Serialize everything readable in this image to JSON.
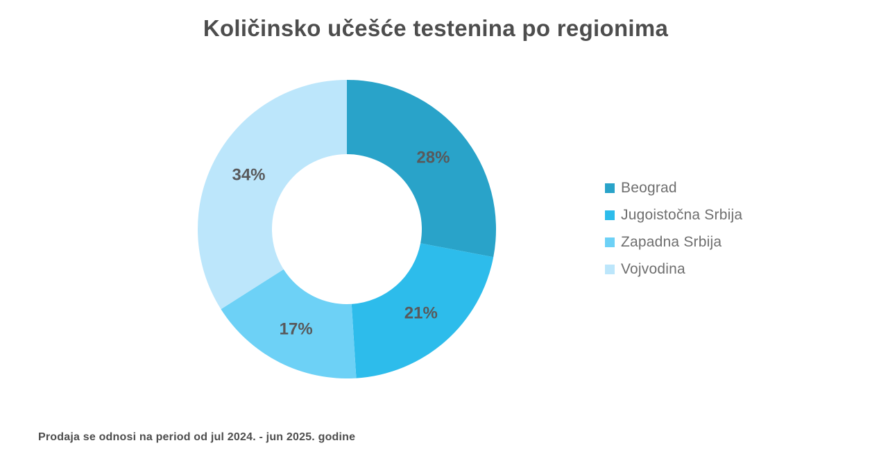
{
  "footnote": "Prodaja se odnosi na period od jul 2024. - jun 2025. godine",
  "chart_data": {
    "type": "pie",
    "subtype": "donut",
    "title": "Količinsko učešće testenina po regionima",
    "categories": [
      "Beograd",
      "Jugoistočna Srbija",
      "Zapadna Srbija",
      "Vojvodina"
    ],
    "values": [
      28,
      21,
      17,
      34
    ],
    "labels": [
      "28%",
      "21%",
      "17%",
      "34%"
    ],
    "colors": [
      "#29A3C9",
      "#2DBCEB",
      "#6DD1F6",
      "#BCE6FB"
    ],
    "label_color": "#58595B",
    "legend_position": "right",
    "start_angle_deg": 0,
    "direction": "clockwise",
    "donut_hole_ratio": 0.5,
    "units": "%"
  }
}
